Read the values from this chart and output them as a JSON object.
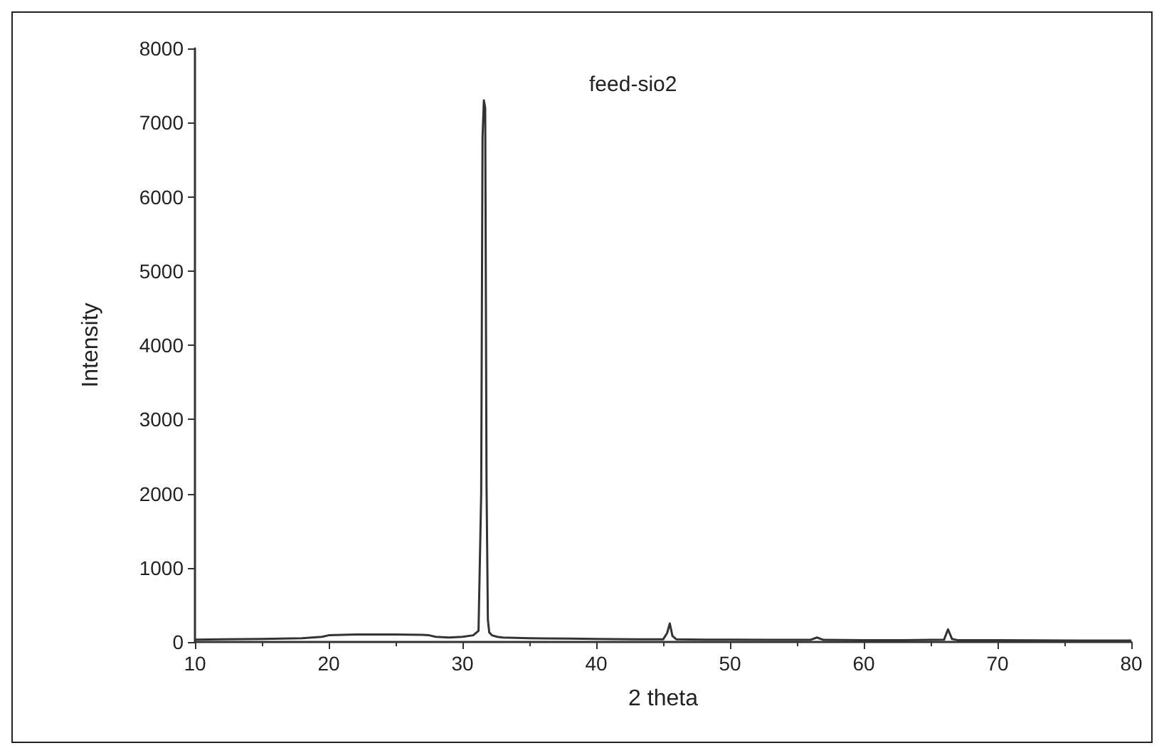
{
  "chart_data": {
    "type": "line",
    "title": "feed-sio2",
    "xlabel": "2 theta",
    "ylabel": "Intensity",
    "xlim": [
      10,
      80
    ],
    "xticks": [
      10,
      20,
      30,
      40,
      50,
      60,
      70,
      80
    ],
    "ylim": [
      0,
      8000
    ],
    "yticks": [
      0,
      1000,
      2000,
      3000,
      4000,
      5000,
      6000,
      7000,
      8000
    ],
    "grid": false,
    "marker": "none",
    "line_style": "solid",
    "series": [
      {
        "color": "#333333",
        "x": [
          10,
          12,
          15,
          18,
          19.5,
          20,
          22,
          25,
          27,
          27.5,
          28,
          29,
          30,
          30.8,
          31.2,
          31.4,
          31.5,
          31.6,
          31.7,
          31.8,
          31.9,
          32.0,
          32.2,
          32.6,
          33,
          35,
          38,
          40,
          43,
          45,
          45.3,
          45.5,
          45.7,
          46,
          48,
          50,
          53,
          56,
          56.5,
          57,
          60,
          63,
          66,
          66.3,
          66.6,
          67,
          70,
          73,
          76,
          80
        ],
        "values": [
          30,
          35,
          40,
          50,
          70,
          90,
          100,
          100,
          95,
          90,
          70,
          60,
          70,
          90,
          150,
          2000,
          6800,
          7300,
          7200,
          2100,
          300,
          130,
          90,
          70,
          60,
          50,
          45,
          40,
          35,
          35,
          120,
          250,
          80,
          35,
          30,
          30,
          28,
          28,
          60,
          28,
          25,
          25,
          30,
          170,
          40,
          25,
          25,
          22,
          20,
          20
        ]
      }
    ]
  }
}
